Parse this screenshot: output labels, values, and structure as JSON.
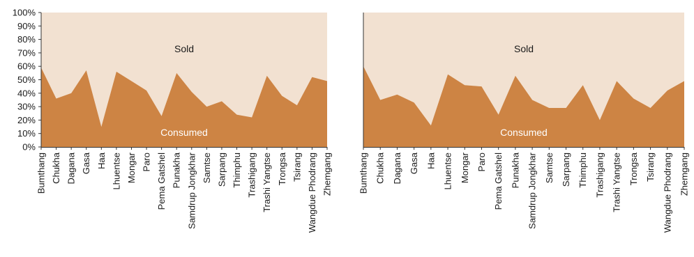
{
  "colors": {
    "consumed": "#CD8444",
    "sold": "#F2E1D1",
    "axis": "#333333",
    "text": "#1a1a1a"
  },
  "chart_data": [
    {
      "type": "area",
      "stacked": true,
      "percent": true,
      "categories": [
        "Bumthang",
        "Chukha",
        "Dagana",
        "Gasa",
        "Haa",
        "Lhuentse",
        "Mongar",
        "Paro",
        "Pema Gatshel",
        "Punakha",
        "Samdrup Jongkhar",
        "Samtse",
        "Sarpang",
        "Thimphu",
        "Trashigang",
        "Trashi Yangtse",
        "Trongsa",
        "Tsirang",
        "Wangdue Phodrang",
        "Zhemgang"
      ],
      "ylim": [
        0,
        100
      ],
      "yticks": [
        "0%",
        "10%",
        "20%",
        "30%",
        "40%",
        "50%",
        "60%",
        "70%",
        "80%",
        "90%",
        "100%"
      ],
      "grid": false,
      "legend": "inline",
      "series": [
        {
          "name": "Consumed",
          "values": [
            59,
            36,
            40,
            57,
            15,
            56,
            49,
            42,
            23,
            55,
            41,
            30,
            34,
            24,
            22,
            53,
            38,
            31,
            52,
            49
          ]
        },
        {
          "name": "Sold",
          "values": [
            41,
            64,
            60,
            43,
            85,
            44,
            51,
            58,
            77,
            45,
            59,
            70,
            66,
            76,
            78,
            47,
            62,
            69,
            48,
            51
          ]
        }
      ]
    },
    {
      "type": "area",
      "stacked": true,
      "percent": true,
      "categories": [
        "Bumthang",
        "Chukha",
        "Dagana",
        "Gasa",
        "Haa",
        "Lhuentse",
        "Mongar",
        "Paro",
        "Pema Gatshel",
        "Punakha",
        "Samdrup Jongkhar",
        "Samtse",
        "Sarpang",
        "Thimphu",
        "Trashigang",
        "Trashi Yangtse",
        "Trongsa",
        "Tsirang",
        "Wangdue Phodrang",
        "Zhemgang"
      ],
      "ylim": [
        0,
        100
      ],
      "yticks": [],
      "grid": false,
      "legend": "inline",
      "series": [
        {
          "name": "Consumed",
          "values": [
            60,
            35,
            39,
            33,
            16,
            54,
            46,
            45,
            24,
            53,
            35,
            29,
            29,
            46,
            20,
            49,
            36,
            29,
            42,
            49
          ]
        },
        {
          "name": "Sold",
          "values": [
            40,
            65,
            61,
            67,
            84,
            46,
            54,
            55,
            76,
            47,
            65,
            71,
            71,
            54,
            80,
            51,
            64,
            71,
            58,
            51
          ]
        }
      ]
    }
  ]
}
